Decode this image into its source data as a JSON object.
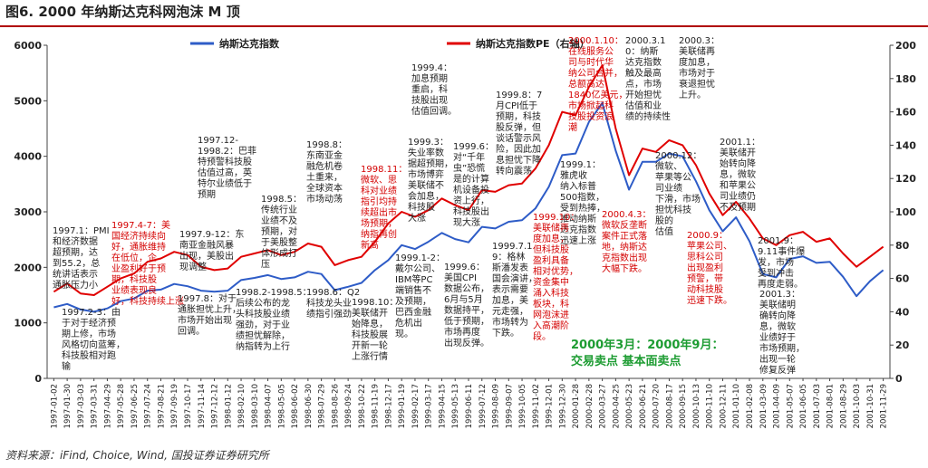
{
  "title": "图6. 2000 年纳斯达克科网泡沫 M 顶",
  "source": "资料来源：iFind, Choice, Wind, 国投证券证券研究所",
  "chart_data": {
    "type": "line",
    "legend": [
      "纳斯达克指数",
      "纳斯达克指数PE（右轴）"
    ],
    "colors": {
      "nasdaq": "#2e5cc7",
      "pe": "#e00000",
      "annotation_red": "#d40000",
      "annotation_dark": "#222222",
      "green": "#1d9c32"
    },
    "y_left": {
      "min": 0,
      "max": 6000,
      "ticks": [
        0,
        1000,
        2000,
        3000,
        4000,
        5000,
        6000
      ]
    },
    "y_right": {
      "min": 0,
      "max": 200,
      "ticks": [
        0,
        20,
        40,
        60,
        80,
        100,
        120,
        140,
        160,
        180,
        200
      ]
    },
    "x_ticks": [
      "1997-01-02",
      "1997-01-30",
      "1997-03-03",
      "1997-03-31",
      "1997-04-29",
      "1997-05-28",
      "1997-06-25",
      "1997-07-24",
      "1997-08-21",
      "1997-09-19",
      "1997-10-17",
      "1997-11-14",
      "1997-12-12",
      "1998-01-12",
      "1998-02-10",
      "1998-03-10",
      "1998-04-07",
      "1998-05-05",
      "1998-06-02",
      "1998-06-30",
      "1998-07-29",
      "1998-08-26",
      "1998-09-24",
      "1998-10-22",
      "1998-11-19",
      "1998-12-17",
      "1999-01-19",
      "1999-02-17",
      "1999-03-17",
      "1999-04-15",
      "1999-05-13",
      "1999-06-11",
      "1999-07-12",
      "1999-08-09",
      "1999-09-07",
      "1999-10-05",
      "1999-11-02",
      "1999-12-01",
      "1999-12-30",
      "2000-01-28",
      "2000-02-28",
      "2000-03-27",
      "2000-04-25",
      "2000-05-23",
      "2000-06-21",
      "2000-07-20",
      "2000-08-17",
      "2000-09-15",
      "2000-10-13",
      "2000-11-10",
      "2000-12-11",
      "2001-01-10",
      "2001-02-08",
      "2001-03-09",
      "2001-04-09",
      "2001-05-07",
      "2001-06-05",
      "2001-07-03",
      "2001-08-01",
      "2001-08-29",
      "2001-10-03",
      "2001-10-31",
      "2001-11-29"
    ],
    "series": [
      {
        "name": "纳斯达克指数",
        "axis": "left",
        "values": [
          1280,
          1340,
          1240,
          1200,
          1260,
          1390,
          1440,
          1580,
          1600,
          1700,
          1660,
          1580,
          1560,
          1580,
          1770,
          1810,
          1860,
          1790,
          1820,
          1920,
          1880,
          1590,
          1650,
          1720,
          1950,
          2130,
          2400,
          2330,
          2460,
          2620,
          2510,
          2450,
          2730,
          2700,
          2820,
          2850,
          3060,
          3450,
          4020,
          4050,
          4620,
          4960,
          4100,
          3400,
          3900,
          3900,
          4050,
          4000,
          3550,
          3030,
          2650,
          2900,
          2470,
          1880,
          1820,
          2150,
          2200,
          2080,
          2100,
          1830,
          1480,
          1750,
          1950
        ]
      },
      {
        "name": "纳斯达克指数PE（右轴）",
        "axis": "right",
        "values": [
          52,
          57,
          51,
          50,
          55,
          60,
          63,
          70,
          72,
          76,
          74,
          67,
          65,
          66,
          73,
          75,
          77,
          74,
          76,
          81,
          79,
          68,
          71,
          73,
          82,
          93,
          100,
          97,
          101,
          108,
          104,
          101,
          113,
          112,
          116,
          117,
          126,
          140,
          160,
          158,
          175,
          188,
          150,
          122,
          138,
          136,
          143,
          140,
          128,
          111,
          98,
          106,
          96,
          84,
          80,
          86,
          88,
          82,
          84,
          75,
          67,
          73,
          79
        ]
      }
    ],
    "annotations": [
      {
        "id": "a1",
        "color": "dark",
        "text": "1997.1：PMI\n和经济数据\n超预期，达\n到55.2，总\n统讲话表示\n通胀压力小"
      },
      {
        "id": "a2",
        "color": "red",
        "text": "1997.4-7：美\n国经济持续向\n好，通胀维持\n在低位，企\n业盈利好于预\n期，科技股\n业绩表现良\n好，科技持续上涨"
      },
      {
        "id": "a3",
        "color": "dark",
        "text": "1997.12-\n1998.2：巴菲\n特预警科技股\n估值过高，英\n特尔业绩低于\n预期"
      },
      {
        "id": "a4",
        "color": "dark",
        "text": "1997.9-12：东\n南亚金融风暴\n出现，美股出\n现调整"
      },
      {
        "id": "a5",
        "color": "dark",
        "text": "1998.5：\n传统行业\n业绩不及\n预期，对\n于美股整\n体形成打\n压"
      },
      {
        "id": "a6",
        "color": "dark",
        "text": "1998.8：\n东南亚金\n融危机卷\n土重来，\n全球资本\n市场动荡"
      },
      {
        "id": "a7",
        "color": "red",
        "text": "1998.11：\n微软、思\n科对业绩\n指引均持\n续超出市\n场预期，\n纳指再创\n新高"
      },
      {
        "id": "a8",
        "color": "dark",
        "text": "1999.4：\n加息预期\n重启，科\n技股出现\n估值回调。"
      },
      {
        "id": "a9",
        "color": "dark",
        "text": "1999.3：\n失业率数\n据超预期，\n市场博弈\n美联储不\n会加息，\n科技股\n大涨"
      },
      {
        "id": "a10",
        "color": "dark",
        "text": "1999.6：\n对“千年\n虫”恐慌\n是的计算\n机设备投\n资上行，\n科技股出\n现大涨"
      },
      {
        "id": "a11",
        "color": "dark",
        "text": "1999.8：7\n月CPI低于\n预期，科技\n股反弹，但\n谈话警示风\n险，因此加\n息担忧下降\n转向震荡"
      },
      {
        "id": "a12",
        "color": "red",
        "text": "2000.1.10：\n在线服务公\n司与时代华\n纳公司合并，\n总额高达\n1840亿美元，\n市场掀起科\n技股投资浪\n潮"
      },
      {
        "id": "a13",
        "color": "dark",
        "text": "2000.3.1\n0：纳斯\n达克指数\n触及最高\n点，市场\n开始担忧\n估值和业\n绩的持续性"
      },
      {
        "id": "a14",
        "color": "dark",
        "text": "2000.3：\n美联储再\n度加息，\n市场对于\n衰退担忧\n上升。"
      },
      {
        "id": "a15",
        "color": "dark",
        "text": "1999.1：\n雅虎收\n纳入标普\n500指数，\n受到热捧，\n推动纳斯\n达克指数\n迅速上涨"
      },
      {
        "id": "a16",
        "color": "red",
        "text": "1999.10：\n美联储再\n度加息，\n但科技股\n盈利具备\n相对优势，\n资金集中\n涌入科技\n板块，科\n网泡沫进\n入高潮阶\n段。"
      },
      {
        "id": "a17",
        "color": "dark",
        "text": "1999.7.1\n9：格林\n斯潘发表\n国会演讲，\n表示需要\n加息，美\n元走强，\n市场转为\n下跌。"
      },
      {
        "id": "a18",
        "color": "red",
        "text": "2000.4.3：\n微软反垄断\n案件正式落\n地，纳斯达\n克指数出现\n大幅下跌。"
      },
      {
        "id": "a19",
        "color": "dark",
        "text": "2000.12：\n微软、\n苹果等公\n司业绩\n下滑，市场\n担忧科技\n股的\n估值"
      },
      {
        "id": "a20",
        "color": "red",
        "text": "2000.9：\n苹果公司、\n思科公司\n出现盈利\n预警，带\n动科技股\n迅速下跌。"
      },
      {
        "id": "a21",
        "color": "dark",
        "text": "2001.1：\n美联储开\n始转向降\n息，微软\n和苹果公\n司业绩仍\n不及预期"
      },
      {
        "id": "a22",
        "color": "dark",
        "text": "2001.9：\n9.11事件爆\n发，市场\n受到冲击\n再度走弱。"
      },
      {
        "id": "a23",
        "color": "dark",
        "text": "2001.3：\n美联储明\n确转向降\n息，微软\n业绩好于\n市场预期，\n出现一轮\n修复反弹"
      },
      {
        "id": "a24",
        "color": "dark",
        "text": "1997.8：对于\n通胀担忧上升，\n市场开始出现\n回调。"
      },
      {
        "id": "a25",
        "color": "dark",
        "text": "1997.2-3：由\n于对于经济预\n期上修，市场\n风格切向蓝筹，\n科技股相对跑\n输"
      },
      {
        "id": "a26",
        "color": "dark",
        "text": "1998.2-1998.5：\n后续公布的龙\n头科技股业绩\n强劲，对于业\n绩担忧解除，\n纳指转为上行"
      },
      {
        "id": "a27",
        "color": "dark",
        "text": "1998.6：Q2\n科技龙头业\n绩指引强劲"
      },
      {
        "id": "a28",
        "color": "dark",
        "text": "1998.10：\n美联储开\n始降息，\n科技股展\n开新一轮\n上涨行情"
      },
      {
        "id": "a29",
        "color": "dark",
        "text": "1999.1-2：\n戴尔公司、\nIBM等PC\n端销售不\n及预期，\n巴西金融\n危机出\n现。"
      },
      {
        "id": "a30",
        "color": "dark",
        "text": "1999.6：\n美国CPI\n数据公布，\n6月与5月\n数据持平，\n低于预期，\n市场再度\n出现反弹。"
      }
    ],
    "green_labels": [
      "2000年3月：2000年9月：",
      "交易卖点    基本面卖点"
    ]
  }
}
